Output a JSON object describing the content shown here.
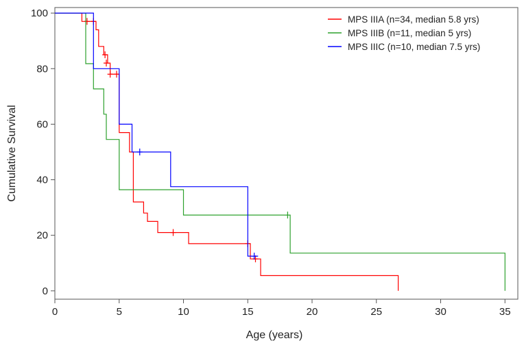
{
  "chart_data": {
    "type": "line",
    "step": true,
    "xlabel": "Age (years)",
    "ylabel": "Cumulative Survival",
    "xlim": [
      0,
      36
    ],
    "ylim": [
      -3,
      102
    ],
    "xticks": [
      0,
      5,
      10,
      15,
      20,
      25,
      30,
      35
    ],
    "yticks": [
      0,
      20,
      40,
      60,
      80,
      100
    ],
    "xtick_labels": [
      "0",
      "5",
      "10",
      "15",
      "20",
      "25",
      "30",
      "35"
    ],
    "ytick_labels": [
      "0",
      "20",
      "40",
      "60",
      "80",
      "100"
    ],
    "grid": false,
    "legend_position": "top-right",
    "series": [
      {
        "name": "MPS IIIA (n=34, median 5.8 yrs)",
        "color": "#ff0000",
        "points": [
          [
            0,
            100
          ],
          [
            2.1,
            100
          ],
          [
            2.1,
            97
          ],
          [
            3.2,
            97
          ],
          [
            3.2,
            94
          ],
          [
            3.4,
            94
          ],
          [
            3.4,
            88
          ],
          [
            3.8,
            88
          ],
          [
            3.8,
            85
          ],
          [
            4.1,
            85
          ],
          [
            4.1,
            82
          ],
          [
            4.3,
            82
          ],
          [
            4.3,
            78
          ],
          [
            5.0,
            78
          ],
          [
            5.0,
            57
          ],
          [
            5.8,
            57
          ],
          [
            5.8,
            50
          ],
          [
            6.1,
            50
          ],
          [
            6.1,
            32
          ],
          [
            6.9,
            32
          ],
          [
            6.9,
            28
          ],
          [
            7.2,
            28
          ],
          [
            7.2,
            25
          ],
          [
            8.0,
            25
          ],
          [
            8.0,
            21
          ],
          [
            10.4,
            21
          ],
          [
            10.4,
            17
          ],
          [
            15.2,
            17
          ],
          [
            15.2,
            11.5
          ],
          [
            16.0,
            11.5
          ],
          [
            16.0,
            5.5
          ],
          [
            26.7,
            5.5
          ],
          [
            26.7,
            0
          ]
        ],
        "censored": [
          [
            2.5,
            97
          ],
          [
            3.0,
            97
          ],
          [
            3.9,
            85
          ],
          [
            4.0,
            82
          ],
          [
            4.3,
            78
          ],
          [
            4.8,
            78
          ],
          [
            9.2,
            21
          ],
          [
            15.0,
            17
          ],
          [
            15.6,
            11.5
          ]
        ]
      },
      {
        "name": "MPS IIIB (n=11, median 5 yrs)",
        "color": "#2ca02c",
        "points": [
          [
            0,
            100
          ],
          [
            2.4,
            100
          ],
          [
            2.4,
            81.8
          ],
          [
            3.0,
            81.8
          ],
          [
            3.0,
            72.7
          ],
          [
            3.8,
            72.7
          ],
          [
            3.8,
            63.6
          ],
          [
            4.0,
            63.6
          ],
          [
            4.0,
            54.5
          ],
          [
            5.0,
            54.5
          ],
          [
            5.0,
            36.4
          ],
          [
            10.0,
            36.4
          ],
          [
            10.0,
            27.3
          ],
          [
            18.3,
            27.3
          ],
          [
            18.3,
            13.6
          ],
          [
            35.0,
            13.6
          ],
          [
            35.0,
            0
          ]
        ],
        "censored": [
          [
            18.1,
            27.3
          ]
        ]
      },
      {
        "name": "MPS IIIC (n=10, median 7.5 yrs)",
        "color": "#0000ff",
        "points": [
          [
            0,
            100
          ],
          [
            3.0,
            100
          ],
          [
            3.0,
            80
          ],
          [
            5.0,
            80
          ],
          [
            5.0,
            60
          ],
          [
            6.0,
            60
          ],
          [
            6.0,
            50
          ],
          [
            9.0,
            50
          ],
          [
            9.0,
            37.5
          ],
          [
            15.0,
            37.5
          ],
          [
            15.0,
            12.5
          ],
          [
            15.8,
            12.5
          ]
        ],
        "censored": [
          [
            6.6,
            50
          ],
          [
            15.5,
            12.5
          ]
        ]
      }
    ]
  }
}
